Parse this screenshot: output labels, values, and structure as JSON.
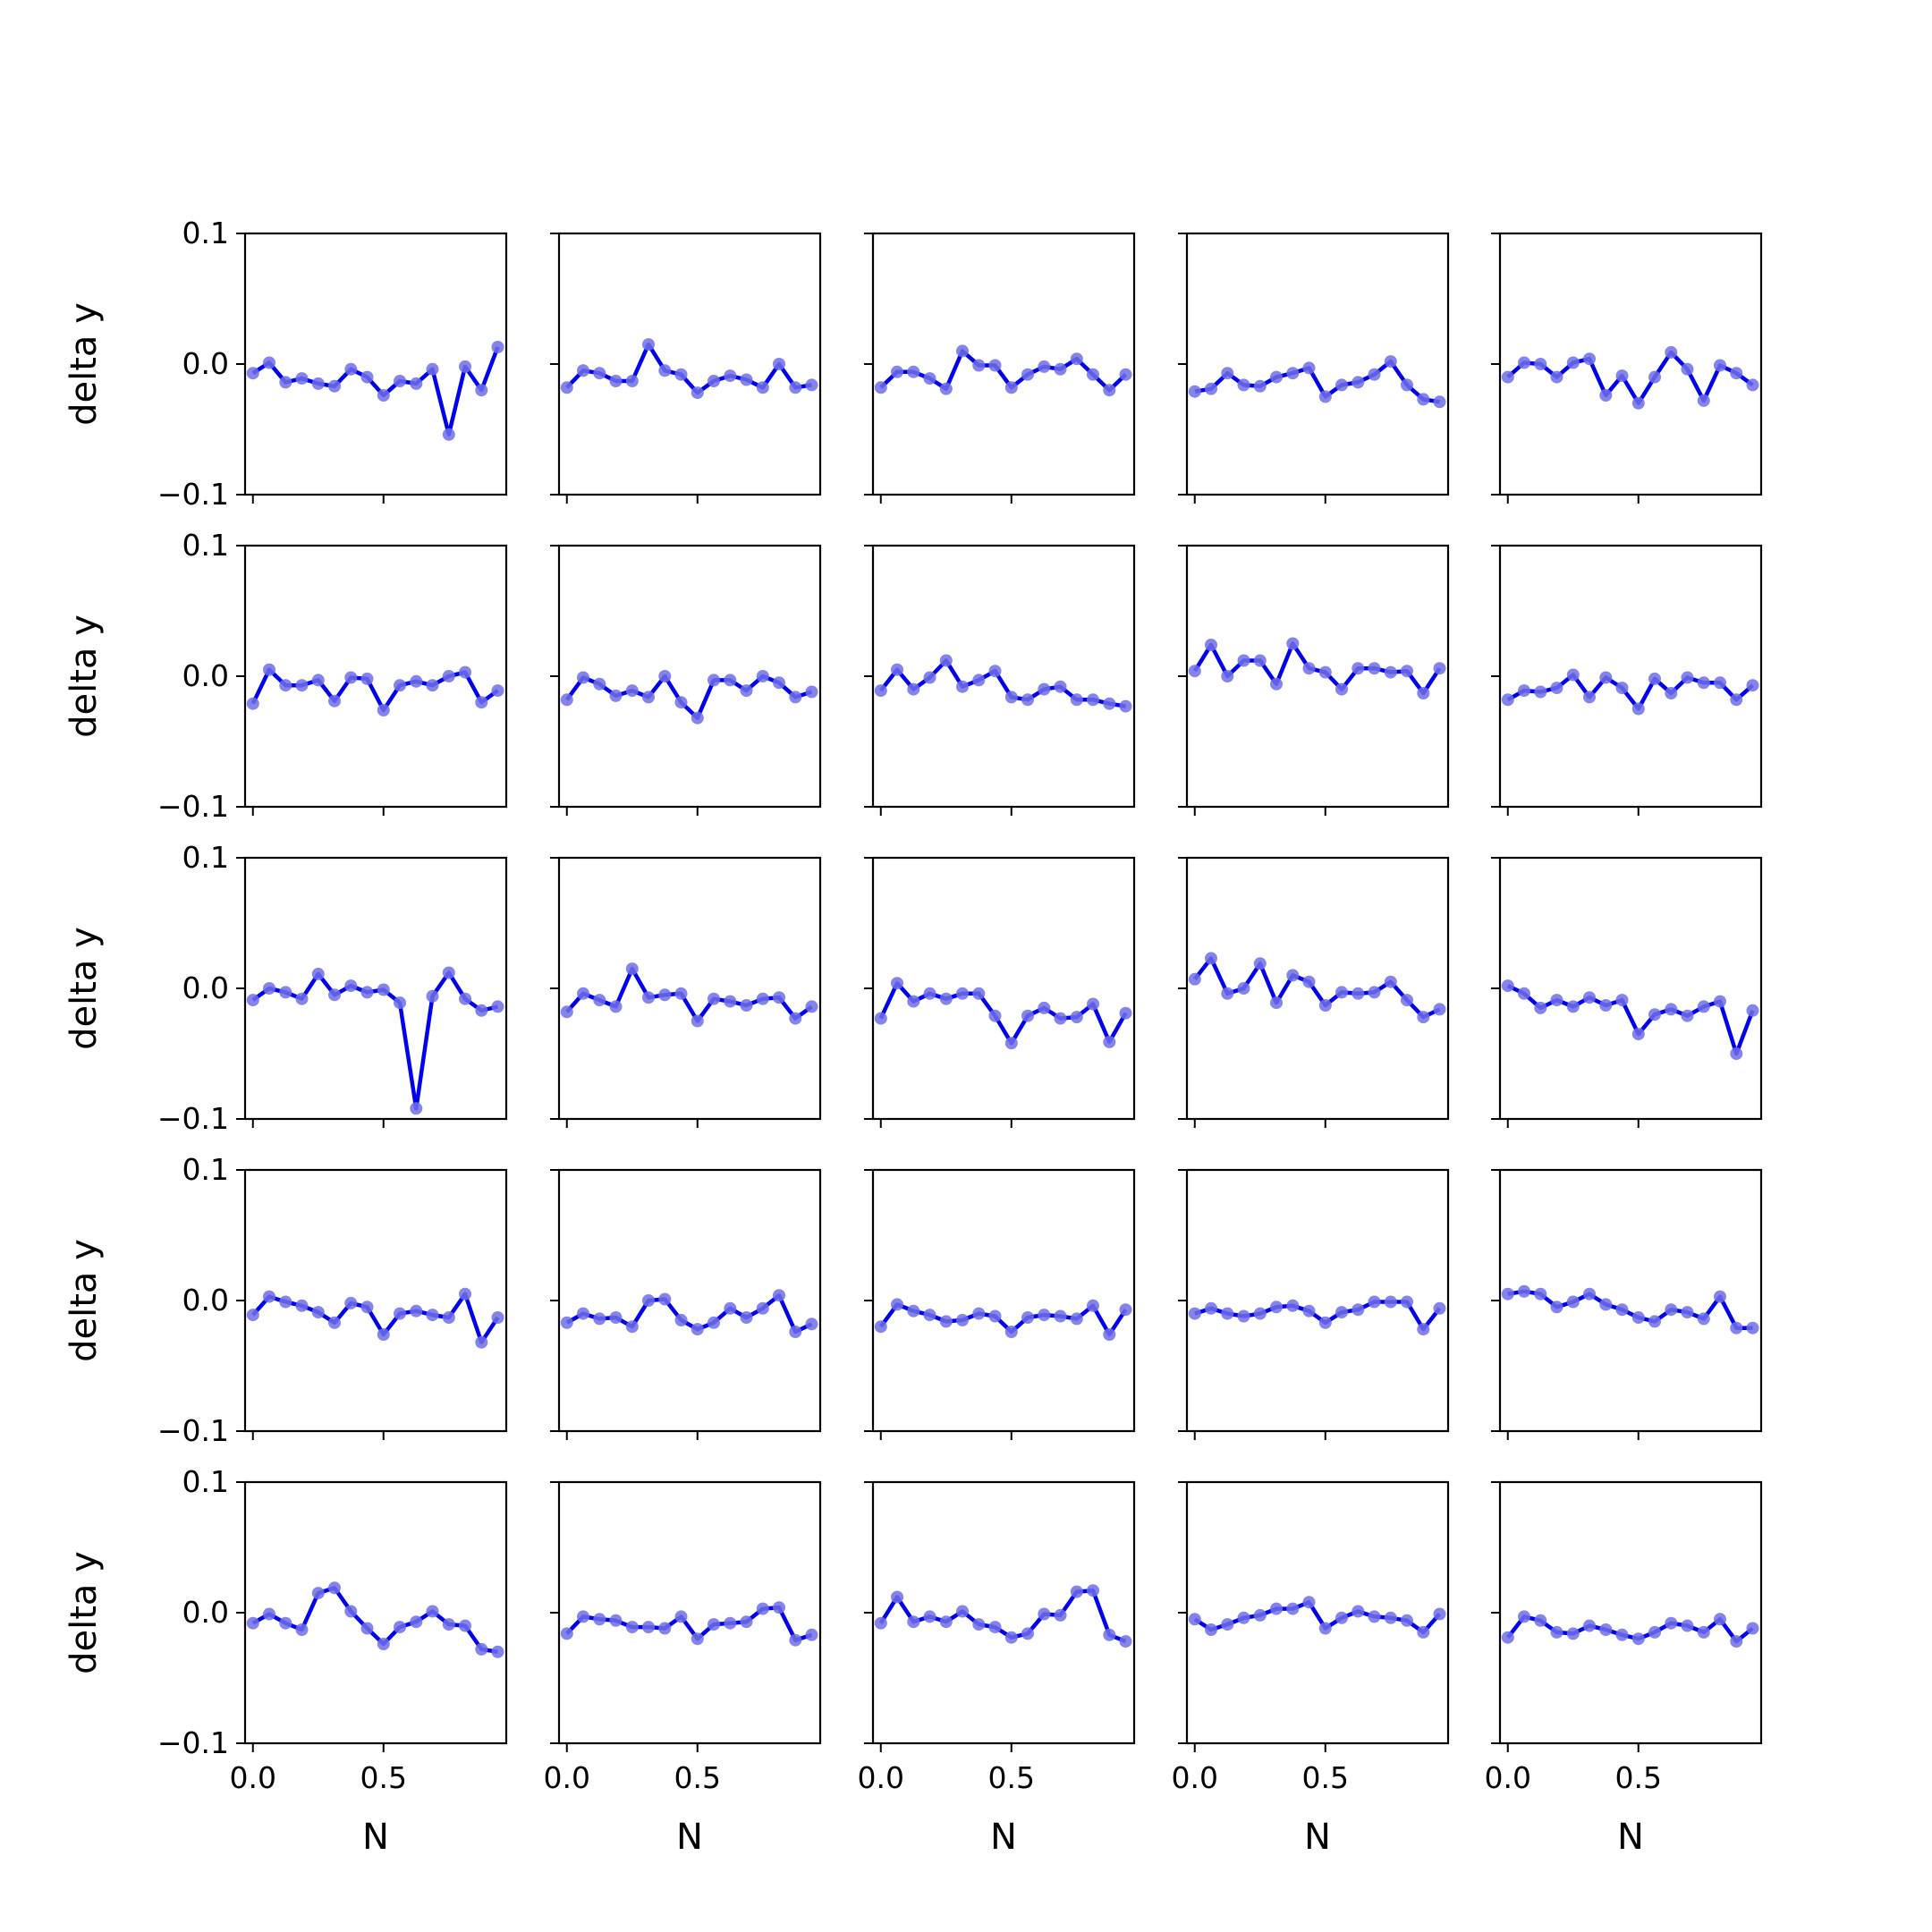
{
  "figure": {
    "background": "#ffffff",
    "line_color": "#0000ee",
    "marker_color": "#6f6fe8"
  },
  "chart_data": {
    "type": "line",
    "layout": "5x5 grid",
    "xlabel": "N",
    "ylabel": "delta y",
    "xlim": [
      -0.03,
      0.97
    ],
    "ylim": [
      -0.1,
      0.1
    ],
    "x_ticks": [
      0.0,
      0.5
    ],
    "x_tick_labels": [
      "0.0",
      "0.5"
    ],
    "y_ticks": [
      -0.1,
      0.0,
      0.1
    ],
    "y_tick_labels": [
      "−0.1",
      "0.0",
      "0.1"
    ],
    "x": [
      0.0,
      0.0625,
      0.125,
      0.1875,
      0.25,
      0.3125,
      0.375,
      0.4375,
      0.5,
      0.5625,
      0.625,
      0.6875,
      0.75,
      0.8125,
      0.875,
      0.9375
    ],
    "panels": [
      [
        -0.007,
        0.001,
        -0.014,
        -0.011,
        -0.015,
        -0.017,
        -0.004,
        -0.01,
        -0.024,
        -0.013,
        -0.015,
        -0.004,
        -0.054,
        -0.002,
        -0.02,
        0.013
      ],
      [
        -0.018,
        -0.005,
        -0.007,
        -0.013,
        -0.013,
        0.015,
        -0.005,
        -0.008,
        -0.022,
        -0.013,
        -0.009,
        -0.012,
        -0.018,
        0.0,
        -0.018,
        -0.016
      ],
      [
        -0.018,
        -0.006,
        -0.006,
        -0.011,
        -0.019,
        0.01,
        -0.001,
        -0.001,
        -0.018,
        -0.008,
        -0.002,
        -0.004,
        0.004,
        -0.008,
        -0.02,
        -0.008
      ],
      [
        -0.021,
        -0.019,
        -0.007,
        -0.016,
        -0.017,
        -0.01,
        -0.007,
        -0.003,
        -0.025,
        -0.016,
        -0.014,
        -0.008,
        0.002,
        -0.016,
        -0.027,
        -0.029
      ],
      [
        -0.01,
        0.001,
        0.0,
        -0.01,
        0.001,
        0.004,
        -0.024,
        -0.009,
        -0.03,
        -0.01,
        0.009,
        -0.004,
        -0.028,
        -0.001,
        -0.007,
        -0.016
      ],
      [
        -0.021,
        0.005,
        -0.007,
        -0.007,
        -0.003,
        -0.019,
        -0.001,
        -0.002,
        -0.026,
        -0.007,
        -0.004,
        -0.007,
        0.0,
        0.003,
        -0.02,
        -0.011
      ],
      [
        -0.018,
        -0.001,
        -0.006,
        -0.015,
        -0.011,
        -0.016,
        0.0,
        -0.02,
        -0.032,
        -0.003,
        -0.003,
        -0.011,
        0.0,
        -0.005,
        -0.016,
        -0.012
      ],
      [
        -0.011,
        0.005,
        -0.01,
        -0.001,
        0.012,
        -0.008,
        -0.003,
        0.004,
        -0.016,
        -0.018,
        -0.01,
        -0.008,
        -0.018,
        -0.018,
        -0.021,
        -0.023
      ],
      [
        0.004,
        0.024,
        0.0,
        0.012,
        0.012,
        -0.006,
        0.025,
        0.006,
        0.003,
        -0.01,
        0.006,
        0.006,
        0.003,
        0.004,
        -0.013,
        0.006
      ],
      [
        -0.018,
        -0.011,
        -0.012,
        -0.009,
        0.001,
        -0.016,
        -0.001,
        -0.009,
        -0.025,
        -0.002,
        -0.013,
        -0.001,
        -0.005,
        -0.005,
        -0.018,
        -0.007
      ],
      [
        -0.009,
        0.0,
        -0.003,
        -0.008,
        0.011,
        -0.005,
        0.002,
        -0.003,
        -0.001,
        -0.011,
        -0.092,
        -0.006,
        0.012,
        -0.008,
        -0.017,
        -0.014
      ],
      [
        -0.018,
        -0.004,
        -0.009,
        -0.014,
        0.015,
        -0.007,
        -0.005,
        -0.004,
        -0.025,
        -0.008,
        -0.01,
        -0.013,
        -0.008,
        -0.007,
        -0.023,
        -0.014
      ],
      [
        -0.023,
        0.004,
        -0.01,
        -0.004,
        -0.008,
        -0.004,
        -0.004,
        -0.021,
        -0.042,
        -0.021,
        -0.015,
        -0.023,
        -0.022,
        -0.012,
        -0.041,
        -0.019
      ],
      [
        0.007,
        0.023,
        -0.004,
        0.0,
        0.019,
        -0.011,
        0.01,
        0.005,
        -0.013,
        -0.003,
        -0.004,
        -0.003,
        0.005,
        -0.009,
        -0.022,
        -0.016
      ],
      [
        0.002,
        -0.004,
        -0.015,
        -0.009,
        -0.014,
        -0.007,
        -0.013,
        -0.009,
        -0.035,
        -0.02,
        -0.016,
        -0.021,
        -0.014,
        -0.01,
        -0.05,
        -0.017
      ],
      [
        -0.011,
        0.003,
        -0.001,
        -0.004,
        -0.009,
        -0.017,
        -0.002,
        -0.005,
        -0.026,
        -0.01,
        -0.008,
        -0.011,
        -0.013,
        0.005,
        -0.032,
        -0.013
      ],
      [
        -0.017,
        -0.01,
        -0.014,
        -0.013,
        -0.02,
        0.0,
        0.001,
        -0.015,
        -0.022,
        -0.017,
        -0.006,
        -0.013,
        -0.006,
        0.004,
        -0.024,
        -0.018
      ],
      [
        -0.02,
        -0.003,
        -0.008,
        -0.011,
        -0.016,
        -0.015,
        -0.01,
        -0.012,
        -0.024,
        -0.013,
        -0.011,
        -0.012,
        -0.014,
        -0.004,
        -0.026,
        -0.007
      ],
      [
        -0.01,
        -0.006,
        -0.01,
        -0.012,
        -0.01,
        -0.005,
        -0.004,
        -0.008,
        -0.017,
        -0.009,
        -0.007,
        -0.001,
        -0.001,
        -0.001,
        -0.022,
        -0.006
      ],
      [
        0.005,
        0.007,
        0.005,
        -0.005,
        -0.001,
        0.005,
        -0.003,
        -0.007,
        -0.013,
        -0.016,
        -0.007,
        -0.009,
        -0.014,
        0.003,
        -0.021,
        -0.021
      ],
      [
        -0.008,
        -0.001,
        -0.008,
        -0.013,
        0.015,
        0.019,
        0.001,
        -0.012,
        -0.024,
        -0.011,
        -0.007,
        0.001,
        -0.009,
        -0.01,
        -0.028,
        -0.03
      ],
      [
        -0.016,
        -0.003,
        -0.005,
        -0.006,
        -0.011,
        -0.011,
        -0.012,
        -0.003,
        -0.02,
        -0.009,
        -0.008,
        -0.007,
        0.003,
        0.004,
        -0.021,
        -0.017
      ],
      [
        -0.008,
        0.012,
        -0.007,
        -0.003,
        -0.007,
        0.001,
        -0.009,
        -0.011,
        -0.019,
        -0.016,
        -0.001,
        -0.002,
        0.016,
        0.017,
        -0.017,
        -0.022
      ],
      [
        -0.005,
        -0.013,
        -0.009,
        -0.004,
        -0.002,
        0.003,
        0.003,
        0.008,
        -0.012,
        -0.004,
        0.001,
        -0.003,
        -0.004,
        -0.006,
        -0.015,
        -0.001
      ],
      [
        -0.019,
        -0.003,
        -0.006,
        -0.015,
        -0.016,
        -0.01,
        -0.013,
        -0.017,
        -0.02,
        -0.015,
        -0.008,
        -0.01,
        -0.015,
        -0.005,
        -0.022,
        -0.012
      ]
    ]
  }
}
